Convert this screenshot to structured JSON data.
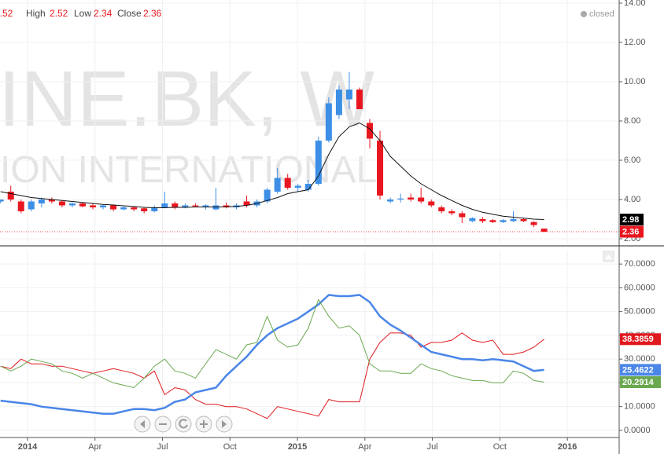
{
  "chart_data": [
    {
      "type": "candlestick",
      "watermark": [
        "INE.BK, W",
        "ION INTERNATIONAL"
      ],
      "ohlc_labels": [
        "High",
        "Low",
        "Close"
      ],
      "status": "closed",
      "x": [
        2013.9,
        2013.938,
        2013.976,
        2014.014,
        2014.052,
        2014.09,
        2014.128,
        2014.166,
        2014.204,
        2014.242,
        2014.28,
        2014.318,
        2014.356,
        2014.394,
        2014.432,
        2014.47,
        2014.508,
        2014.546,
        2014.584,
        2014.622,
        2014.66,
        2014.698,
        2014.736,
        2014.774,
        2014.812,
        2014.85,
        2014.888,
        2014.926,
        2014.964,
        2015.002,
        2015.04,
        2015.078,
        2015.116,
        2015.154,
        2015.192,
        2015.23,
        2015.268,
        2015.306,
        2015.344,
        2015.382,
        2015.42,
        2015.458,
        2015.496,
        2015.534,
        2015.572,
        2015.61,
        2015.648,
        2015.686,
        2015.724,
        2015.762,
        2015.8,
        2015.838,
        2015.876,
        2015.914
      ],
      "open": [
        3.9,
        4.4,
        3.9,
        3.5,
        3.8,
        4.0,
        3.9,
        3.7,
        3.8,
        3.7,
        3.6,
        3.7,
        3.5,
        3.6,
        3.55,
        3.4,
        3.6,
        3.8,
        3.6,
        3.7,
        3.6,
        3.5,
        3.7,
        3.6,
        3.9,
        3.7,
        3.9,
        4.4,
        5.1,
        4.6,
        4.5,
        4.8,
        7.0,
        8.3,
        9.1,
        9.6,
        7.9,
        7.0,
        3.9,
        4.0,
        4.1,
        4.1,
        3.9,
        3.6,
        3.4,
        3.3,
        2.9,
        3.0,
        2.95,
        2.85,
        2.9,
        3.0,
        2.85,
        2.52
      ],
      "high": [
        4.0,
        4.7,
        4.0,
        4.0,
        4.1,
        4.1,
        3.95,
        3.85,
        3.85,
        3.8,
        3.75,
        3.75,
        3.7,
        3.65,
        3.6,
        3.7,
        4.4,
        3.9,
        3.8,
        3.8,
        3.75,
        4.6,
        3.85,
        3.8,
        4.2,
        4.0,
        4.6,
        5.6,
        5.3,
        4.8,
        5.0,
        7.2,
        9.2,
        9.8,
        10.5,
        9.7,
        8.1,
        7.5,
        4.1,
        4.3,
        4.3,
        4.6,
        4.0,
        3.7,
        3.5,
        3.4,
        3.1,
        3.1,
        3.0,
        3.0,
        3.4,
        3.05,
        2.9,
        2.52
      ],
      "low": [
        3.8,
        3.9,
        3.3,
        3.4,
        3.6,
        3.8,
        3.6,
        3.6,
        3.6,
        3.5,
        3.5,
        3.4,
        3.45,
        3.4,
        3.3,
        3.35,
        3.55,
        3.5,
        3.55,
        3.6,
        3.5,
        3.45,
        3.55,
        3.5,
        3.6,
        3.6,
        3.8,
        4.3,
        4.5,
        4.4,
        4.4,
        4.7,
        6.9,
        8.1,
        8.6,
        8.6,
        6.6,
        4.0,
        3.8,
        3.85,
        3.9,
        3.8,
        3.6,
        3.3,
        3.2,
        2.8,
        2.85,
        2.8,
        2.8,
        2.8,
        2.85,
        2.85,
        2.6,
        2.34
      ],
      "close": [
        4.0,
        4.0,
        3.4,
        3.9,
        4.0,
        3.9,
        3.7,
        3.8,
        3.65,
        3.6,
        3.7,
        3.5,
        3.6,
        3.5,
        3.4,
        3.6,
        3.8,
        3.6,
        3.7,
        3.65,
        3.7,
        3.7,
        3.6,
        3.7,
        3.7,
        3.9,
        4.5,
        5.1,
        4.6,
        4.7,
        4.8,
        7.0,
        8.9,
        9.6,
        9.6,
        8.6,
        7.1,
        4.2,
        4.0,
        4.05,
        4.0,
        3.9,
        3.7,
        3.4,
        3.3,
        3.1,
        3.05,
        2.9,
        2.85,
        2.95,
        3.0,
        2.9,
        2.7,
        2.36
      ],
      "up_color": "#3d8fe6",
      "down_color": "#e8171f",
      "ma": {
        "color": "#111111",
        "values": [
          4.4,
          4.3,
          4.2,
          4.1,
          4.05,
          4.0,
          3.95,
          3.9,
          3.85,
          3.8,
          3.75,
          3.72,
          3.68,
          3.65,
          3.6,
          3.58,
          3.58,
          3.6,
          3.6,
          3.62,
          3.62,
          3.62,
          3.63,
          3.65,
          3.7,
          3.8,
          3.95,
          4.1,
          4.3,
          4.4,
          4.5,
          5.2,
          6.3,
          7.2,
          7.7,
          7.9,
          7.6,
          7.0,
          6.2,
          5.7,
          5.2,
          4.8,
          4.5,
          4.2,
          3.95,
          3.7,
          3.5,
          3.35,
          3.25,
          3.15,
          3.1,
          3.05,
          3.0,
          2.98
        ]
      },
      "xlim": [
        2013.898,
        2016.192
      ],
      "ylim": [
        1.68,
        14.16
      ],
      "yticks": [
        {
          "value": 2,
          "label": "2.00"
        },
        {
          "value": 4,
          "label": "4.00"
        },
        {
          "value": 6,
          "label": "6.00"
        },
        {
          "value": 8,
          "label": "8.00"
        },
        {
          "value": 10,
          "label": "10.00"
        },
        {
          "value": 12,
          "label": "12.00"
        },
        {
          "value": 14,
          "label": "14.00"
        }
      ],
      "grid": true
    },
    {
      "type": "line",
      "series": [
        {
          "color": "#e0191e",
          "values": [
            27,
            26,
            30,
            28,
            28,
            27,
            27,
            26,
            25,
            24,
            25,
            26,
            25,
            24,
            22,
            25,
            15,
            18,
            17,
            13,
            11,
            11,
            10,
            10,
            9,
            7,
            5,
            10,
            9,
            8,
            7,
            6,
            13,
            12,
            12,
            12,
            30,
            37,
            41,
            41,
            40,
            35,
            37,
            37,
            38,
            41,
            38,
            37,
            38,
            32,
            32,
            33,
            35,
            38.3859
          ]
        },
        {
          "color": "#4a86e8",
          "values": [
            12.5,
            12,
            11.5,
            11,
            10,
            9.5,
            9,
            8.5,
            8,
            7.5,
            7,
            7,
            8,
            9,
            9,
            8.5,
            9.5,
            12,
            13,
            16,
            17,
            18,
            23,
            27,
            31,
            36,
            40,
            43,
            45,
            47,
            50,
            53,
            57,
            56.5,
            56.5,
            57,
            54,
            48,
            44.5,
            42,
            39,
            36,
            33,
            32,
            31,
            30,
            30,
            29.5,
            30,
            29.5,
            29,
            27,
            25,
            25.4622
          ]
        },
        {
          "color": "#6aa84f",
          "values": [
            27,
            25,
            27,
            30,
            29,
            28,
            25,
            24,
            22,
            24,
            22,
            20,
            19,
            18,
            22,
            27,
            30,
            25,
            24,
            22,
            28,
            34,
            32,
            30,
            36,
            37,
            48,
            38,
            35,
            36,
            43,
            55,
            48,
            43,
            44,
            40,
            28,
            25,
            25,
            24,
            24,
            28,
            26,
            25,
            23,
            22,
            21,
            21,
            20,
            20,
            25,
            24,
            21,
            20.2914
          ]
        }
      ],
      "xlim": [
        2013.898,
        2016.192
      ],
      "ylim": [
        -3,
        76
      ],
      "yticks": [
        {
          "value": 0,
          "label": "0.0000"
        },
        {
          "value": 10,
          "label": "10.0000"
        },
        {
          "value": 20,
          "label": "20.0000"
        },
        {
          "value": 30,
          "label": "30.0000"
        },
        {
          "value": 40,
          "label": "40.0000"
        },
        {
          "value": 50,
          "label": "50.0000"
        },
        {
          "value": 60,
          "label": "60.0000"
        },
        {
          "value": 70,
          "label": "70.0000"
        }
      ],
      "xticks": [
        {
          "value": 2014,
          "label": "2014"
        },
        {
          "value": 2014.25,
          "label": "Apr"
        },
        {
          "value": 2014.5,
          "label": "Jul"
        },
        {
          "value": 2014.75,
          "label": "Oct"
        },
        {
          "value": 2015,
          "label": "2015"
        },
        {
          "value": 2015.25,
          "label": "Apr"
        },
        {
          "value": 2015.5,
          "label": "Jul"
        },
        {
          "value": 2015.75,
          "label": "Oct"
        },
        {
          "value": 2016,
          "label": "2016"
        }
      ],
      "grid": true
    }
  ]
}
